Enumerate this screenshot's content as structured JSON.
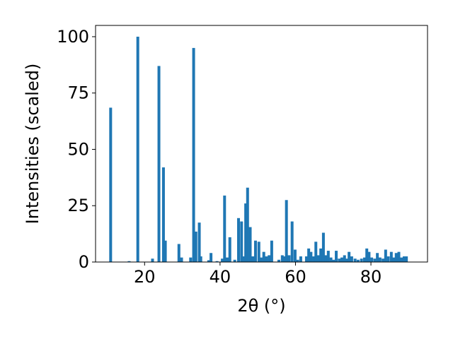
{
  "chart_data": {
    "type": "bar",
    "xlabel": "2θ (°)",
    "ylabel": "Intensities (scaled)",
    "xlim": [
      7,
      95
    ],
    "ylim": [
      0,
      105
    ],
    "x_ticks": [
      20,
      40,
      60,
      80
    ],
    "y_ticks": [
      0,
      25,
      50,
      75,
      100
    ],
    "bar_width": 0.75,
    "color": "#1f77b4",
    "grid": false,
    "bars": [
      {
        "x": 11.0,
        "y": 68.5
      },
      {
        "x": 15.9,
        "y": 0.4
      },
      {
        "x": 18.2,
        "y": 100
      },
      {
        "x": 22.1,
        "y": 1.5
      },
      {
        "x": 23.8,
        "y": 87
      },
      {
        "x": 25.0,
        "y": 42
      },
      {
        "x": 25.5,
        "y": 9.5
      },
      {
        "x": 29.1,
        "y": 8
      },
      {
        "x": 29.8,
        "y": 2
      },
      {
        "x": 32.2,
        "y": 2
      },
      {
        "x": 33.0,
        "y": 95
      },
      {
        "x": 33.6,
        "y": 13.5
      },
      {
        "x": 34.5,
        "y": 17.5
      },
      {
        "x": 34.9,
        "y": 2.5
      },
      {
        "x": 37.0,
        "y": 0.8
      },
      {
        "x": 37.6,
        "y": 4
      },
      {
        "x": 39.2,
        "y": 0.4
      },
      {
        "x": 40.6,
        "y": 1.5
      },
      {
        "x": 41.2,
        "y": 29.5
      },
      {
        "x": 41.9,
        "y": 2
      },
      {
        "x": 42.6,
        "y": 11
      },
      {
        "x": 43.9,
        "y": 1
      },
      {
        "x": 44.9,
        "y": 19.5
      },
      {
        "x": 45.7,
        "y": 18
      },
      {
        "x": 46.3,
        "y": 2.5
      },
      {
        "x": 46.8,
        "y": 26
      },
      {
        "x": 47.3,
        "y": 33
      },
      {
        "x": 48.0,
        "y": 15.5
      },
      {
        "x": 48.7,
        "y": 2.5
      },
      {
        "x": 49.4,
        "y": 9.5
      },
      {
        "x": 50.3,
        "y": 9
      },
      {
        "x": 50.9,
        "y": 2
      },
      {
        "x": 51.6,
        "y": 4.5
      },
      {
        "x": 52.3,
        "y": 2.5
      },
      {
        "x": 53.0,
        "y": 3
      },
      {
        "x": 53.7,
        "y": 9.5
      },
      {
        "x": 55.6,
        "y": 1
      },
      {
        "x": 56.5,
        "y": 3
      },
      {
        "x": 57.0,
        "y": 2.5
      },
      {
        "x": 57.6,
        "y": 27.5
      },
      {
        "x": 58.3,
        "y": 3
      },
      {
        "x": 59.1,
        "y": 18
      },
      {
        "x": 59.9,
        "y": 5.5
      },
      {
        "x": 60.6,
        "y": 1
      },
      {
        "x": 61.4,
        "y": 2.5
      },
      {
        "x": 62.9,
        "y": 2.5
      },
      {
        "x": 63.5,
        "y": 6
      },
      {
        "x": 64.1,
        "y": 4.5
      },
      {
        "x": 64.8,
        "y": 2.5
      },
      {
        "x": 65.4,
        "y": 9
      },
      {
        "x": 66.1,
        "y": 3
      },
      {
        "x": 66.7,
        "y": 6
      },
      {
        "x": 67.4,
        "y": 13
      },
      {
        "x": 68.0,
        "y": 3
      },
      {
        "x": 68.7,
        "y": 5
      },
      {
        "x": 69.4,
        "y": 2
      },
      {
        "x": 70.1,
        "y": 1
      },
      {
        "x": 70.8,
        "y": 5
      },
      {
        "x": 71.6,
        "y": 1.5
      },
      {
        "x": 72.3,
        "y": 2
      },
      {
        "x": 73.0,
        "y": 3
      },
      {
        "x": 73.6,
        "y": 1.5
      },
      {
        "x": 74.2,
        "y": 4.5
      },
      {
        "x": 74.9,
        "y": 2.5
      },
      {
        "x": 75.8,
        "y": 1.5
      },
      {
        "x": 76.6,
        "y": 1
      },
      {
        "x": 77.5,
        "y": 1.5
      },
      {
        "x": 78.3,
        "y": 2
      },
      {
        "x": 78.9,
        "y": 6
      },
      {
        "x": 79.5,
        "y": 4.5
      },
      {
        "x": 80.2,
        "y": 2
      },
      {
        "x": 81.0,
        "y": 1.5
      },
      {
        "x": 81.7,
        "y": 4
      },
      {
        "x": 82.4,
        "y": 2
      },
      {
        "x": 83.2,
        "y": 1.5
      },
      {
        "x": 83.9,
        "y": 5.5
      },
      {
        "x": 84.6,
        "y": 2.5
      },
      {
        "x": 85.4,
        "y": 4.5
      },
      {
        "x": 86.0,
        "y": 2
      },
      {
        "x": 86.7,
        "y": 4
      },
      {
        "x": 87.4,
        "y": 4.5
      },
      {
        "x": 88.1,
        "y": 2
      },
      {
        "x": 88.8,
        "y": 2.5
      },
      {
        "x": 89.4,
        "y": 2.5
      }
    ]
  }
}
